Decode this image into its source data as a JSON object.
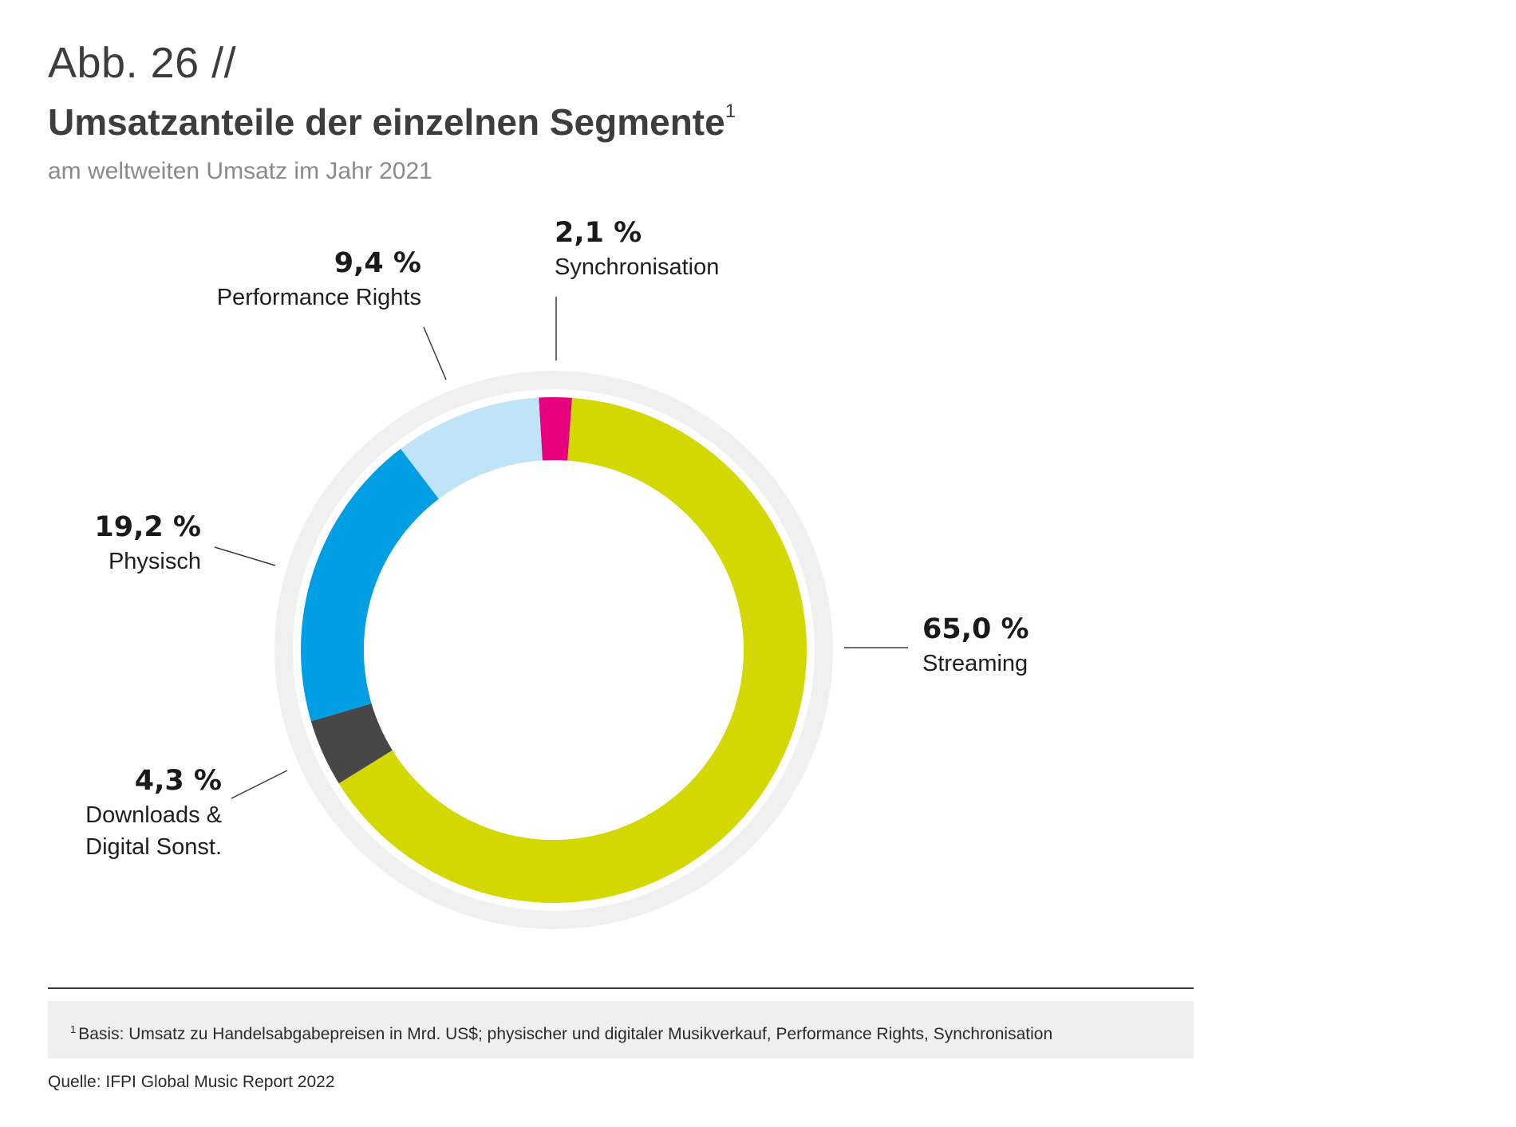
{
  "header": {
    "figure_number": "Abb. 26 //",
    "title": "Umsatzanteile der einzelnen Segmente",
    "title_footnote_mark": "1",
    "subtitle": "am weltweiten Umsatz im Jahr 2021"
  },
  "chart_data": {
    "type": "pie",
    "variant": "donut",
    "slices": [
      {
        "label": "Streaming",
        "value": 65.0,
        "value_label": "65,0 %",
        "color": "#d3d800"
      },
      {
        "label": "Downloads & Digital Sonst.",
        "label_line1": "Downloads &",
        "label_line2": "Digital Sonst.",
        "value": 4.3,
        "value_label": "4,3 %",
        "color": "#474747"
      },
      {
        "label": "Physisch",
        "value": 19.2,
        "value_label": "19,2 %",
        "color": "#009fe3"
      },
      {
        "label": "Performance Rights",
        "value": 9.4,
        "value_label": "9,4 %",
        "color": "#bfe3f7"
      },
      {
        "label": "Synchronisation",
        "value": 2.1,
        "value_label": "2,1 %",
        "color": "#e6007e"
      }
    ],
    "outer_ring_color": "#f0f0f0",
    "direction": "clockwise from top"
  },
  "footer": {
    "footnote_mark": "1",
    "footnote": "Basis: Umsatz zu Handelsabgabepreisen in Mrd. US$; physischer und digitaler Musikverkauf, Performance Rights, Synchronisation",
    "source": "Quelle: IFPI Global Music Report 2022"
  }
}
